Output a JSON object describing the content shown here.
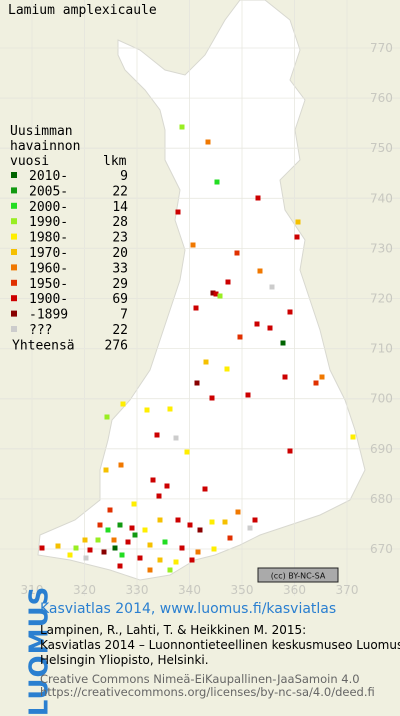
{
  "header": {
    "title": "Lamium amplexicaule"
  },
  "map": {
    "y_labels": [
      "770",
      "760",
      "750",
      "740",
      "730",
      "720",
      "710",
      "700",
      "690",
      "680",
      "670"
    ],
    "x_labels": [
      "310",
      "320",
      "330",
      "340",
      "350",
      "360",
      "370"
    ],
    "license": "(cc) BY-NC-SA"
  },
  "legend": {
    "heading": [
      "Uusimman",
      "havainnon"
    ],
    "col_year": "vuosi",
    "col_count": "lkm",
    "rows": [
      {
        "label": "2010-",
        "count": "9",
        "color": "#006400"
      },
      {
        "label": "2005-",
        "count": "22",
        "color": "#119911"
      },
      {
        "label": "2000-",
        "count": "14",
        "color": "#22dd22"
      },
      {
        "label": "1990-",
        "count": "28",
        "color": "#99ee22"
      },
      {
        "label": "1980-",
        "count": "23",
        "color": "#ffee00"
      },
      {
        "label": "1970-",
        "count": "20",
        "color": "#f5c000"
      },
      {
        "label": "1960-",
        "count": "33",
        "color": "#f07800"
      },
      {
        "label": "1950-",
        "count": "29",
        "color": "#e03000"
      },
      {
        "label": "1900-",
        "count": "69",
        "color": "#cc0000"
      },
      {
        "label": "-1899",
        "count": "7",
        "color": "#880000"
      },
      {
        "label": "???",
        "count": "22",
        "color": "#cccccc"
      }
    ],
    "total_label": "Yhteensä",
    "total": "276"
  },
  "footer": {
    "site": "Kasviatlas 2014, www.luomus.fi/kasviatlas",
    "citation": [
      "Lampinen, R., Lahti, T. & Heikkinen M. 2015:",
      "Kasviatlas 2014 – Luonnontieteellinen keskusmuseo Luomus,",
      "Helsingin Yliopisto, Helsinki."
    ],
    "license": [
      "Creative Commons Nimeä-EiKaupallinen-JaaSamoin 4.0",
      "https://creativecommons.org/licenses/by-nc-sa/4.0/deed.fi"
    ],
    "brand": "LUOMUS"
  }
}
